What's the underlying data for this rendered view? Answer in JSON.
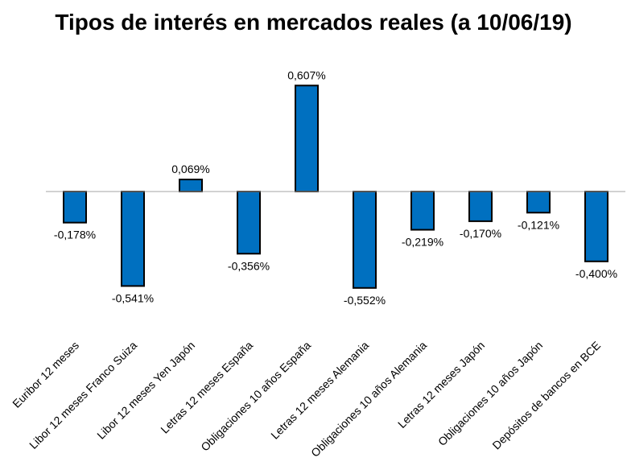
{
  "chart_data": {
    "type": "bar",
    "title": "Tipos de interés en mercados reales (a 10/06/19)",
    "categories": [
      "Euribor 12 meses",
      "Libor 12 meses Franco Suiza",
      "Libor 12 meses Yen Japón",
      "Letras 12 meses España",
      "Obligaciones 10 años España",
      "Letras 12 meses Alemania",
      "Obligaciones 10 años Alemania",
      "Letras 12 meses Japón",
      "Obligaciones 10 años Japón",
      "Depósitos de bancos en BCE"
    ],
    "values": [
      -0.178,
      -0.541,
      0.069,
      -0.356,
      0.607,
      -0.552,
      -0.219,
      -0.17,
      -0.121,
      -0.4
    ],
    "data_labels": [
      "-0,178%",
      "-0,541%",
      "0,069%",
      "-0,356%",
      "0,607%",
      "-0,552%",
      "-0,219%",
      "-0,170%",
      "-0,121%",
      "-0,400%"
    ],
    "bar_color": "#0070C0",
    "bar_stroke": "#000000",
    "grid": false,
    "legend": "none"
  }
}
